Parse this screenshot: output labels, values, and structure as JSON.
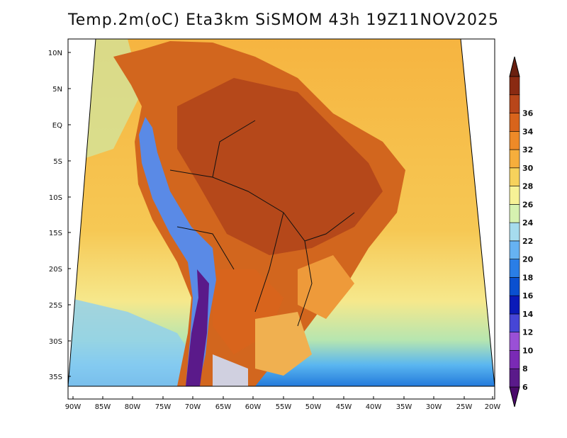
{
  "title": "Temp.2m(oC) Eta3km SiSMOM 43h 19Z11NOV2025",
  "lat_labels": [
    "10N",
    "5N",
    "EQ",
    "5S",
    "10S",
    "15S",
    "20S",
    "25S",
    "30S",
    "35S"
  ],
  "lon_labels": [
    "90W",
    "85W",
    "80W",
    "75W",
    "70W",
    "65W",
    "60W",
    "55W",
    "50W",
    "45W",
    "40W",
    "35W",
    "30W",
    "25W",
    "20W"
  ],
  "colorbar": {
    "labels": [
      "6",
      "8",
      "10",
      "12",
      "14",
      "16",
      "18",
      "20",
      "22",
      "24",
      "26",
      "28",
      "30",
      "32",
      "34",
      "36"
    ],
    "colors": [
      "#5a1a8a",
      "#7a2ab5",
      "#9a50d6",
      "#4646d6",
      "#0a1ab8",
      "#0a50d0",
      "#2a7ee6",
      "#66b2f2",
      "#a6dcee",
      "#d6f2b0",
      "#f6f296",
      "#f6d25c",
      "#f6ae3c",
      "#ee8a28",
      "#d8641c",
      "#b8461a",
      "#8a2a12"
    ],
    "arrow_low": "#4a0a6a",
    "arrow_high": "#6a2010"
  },
  "colors": {
    "ocean_warm": "#f6c050",
    "ocean_mid": "#f6e08a",
    "ocean_cool": "#b6e6b0",
    "ocean_cold": "#5ab6f0",
    "land_hot": "#c0561c",
    "land_warm": "#e07a24",
    "andes": "#5a8ae6",
    "andes_high": "#5a1a8a",
    "borders": "#111111"
  }
}
